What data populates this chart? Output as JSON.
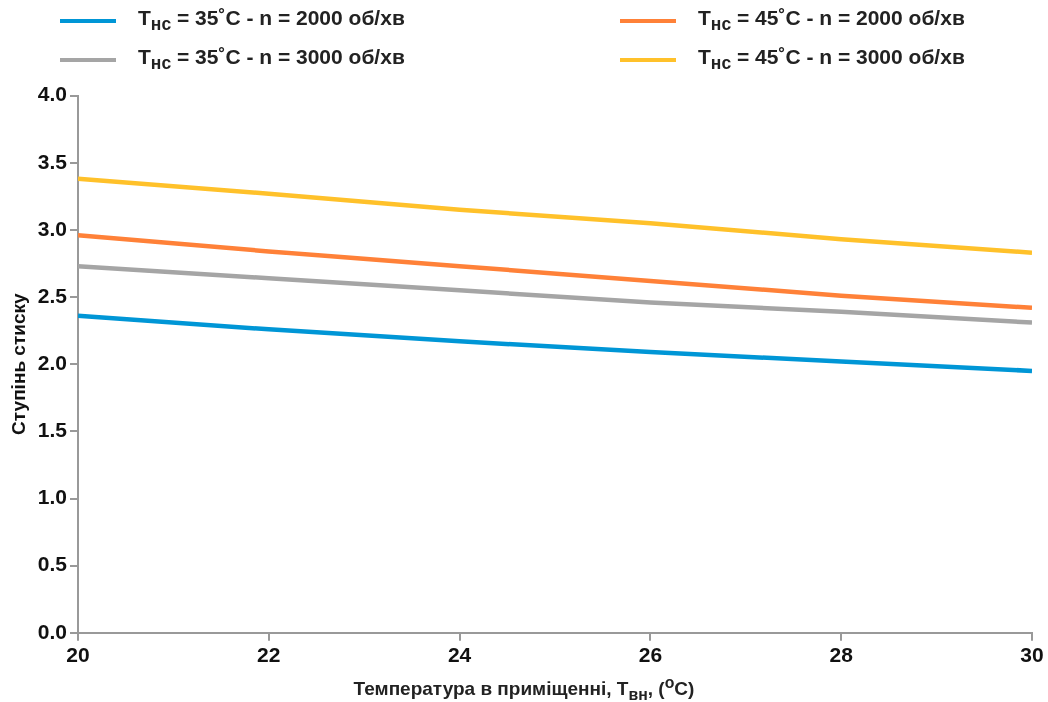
{
  "chart_data": {
    "type": "line",
    "xlabel": "Температура в приміщенні, T$_{вн}$, ($^{o}$C)",
    "ylabel": "Ступінь стиску",
    "x": [
      20,
      22,
      24,
      26,
      28,
      30
    ],
    "series": [
      {
        "name": "T$_{нс}$  = 35˚C - n = 2000 об/хв",
        "color": "#0096d6",
        "values": [
          2.36,
          2.26,
          2.17,
          2.09,
          2.02,
          1.95
        ]
      },
      {
        "name": "T$_{нс}$  = 45˚C - n = 2000 об/хв",
        "color": "#ff8138",
        "values": [
          2.96,
          2.84,
          2.73,
          2.62,
          2.51,
          2.42
        ]
      },
      {
        "name": "T$_{нс}$  = 35˚C - n = 3000 об/хв",
        "color": "#a5a5a5",
        "values": [
          2.73,
          2.64,
          2.55,
          2.46,
          2.39,
          2.31
        ]
      },
      {
        "name": "T$_{нс}$  = 45˚C - n = 3000 об/хв",
        "color": "#ffc12a",
        "values": [
          3.38,
          3.27,
          3.15,
          3.05,
          2.93,
          2.83
        ]
      }
    ],
    "xlim": [
      20,
      30
    ],
    "xticks": [
      20,
      22,
      24,
      26,
      28,
      30
    ],
    "ylim": [
      0,
      4
    ],
    "yticks": [
      {
        "value": 0,
        "label": "0.0"
      },
      {
        "value": 0.5,
        "label": "0.5"
      },
      {
        "value": 1,
        "label": "1.0"
      },
      {
        "value": 1.5,
        "label": "1.5"
      },
      {
        "value": 2,
        "label": "2.0"
      },
      {
        "value": 2.5,
        "label": "2.5"
      },
      {
        "value": 3,
        "label": "3.0"
      },
      {
        "value": 3.5,
        "label": "3.5"
      },
      {
        "value": 4,
        "label": "4.0"
      }
    ],
    "grid": false,
    "legend": "top",
    "marker": "none",
    "line_style": "solid"
  }
}
